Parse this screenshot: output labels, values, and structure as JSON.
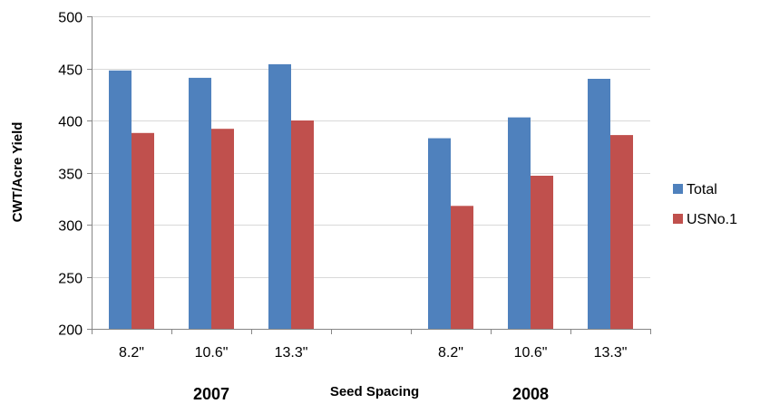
{
  "chart_data": {
    "type": "bar",
    "title": "",
    "ylabel": "CWT/Acre Yield",
    "xlabel": "Seed Spacing",
    "ylim": [
      200,
      500
    ],
    "yticks": [
      200,
      250,
      300,
      350,
      400,
      450,
      500
    ],
    "grid": true,
    "legend_position": "right",
    "categories": [
      "8.2\"",
      "10.6\"",
      "13.3\"",
      "",
      "8.2\"",
      "10.6\"",
      "13.3\""
    ],
    "groups": [
      {
        "label": "2007",
        "from": 0,
        "to": 2
      },
      {
        "label": "2008",
        "from": 4,
        "to": 6
      }
    ],
    "series": [
      {
        "name": "Total",
        "color": "#4f81bd",
        "values": [
          448,
          441,
          454,
          null,
          383,
          403,
          440
        ]
      },
      {
        "name": "USNo.1",
        "color": "#c0504d",
        "values": [
          388,
          392,
          400,
          null,
          318,
          347,
          386
        ]
      }
    ]
  }
}
